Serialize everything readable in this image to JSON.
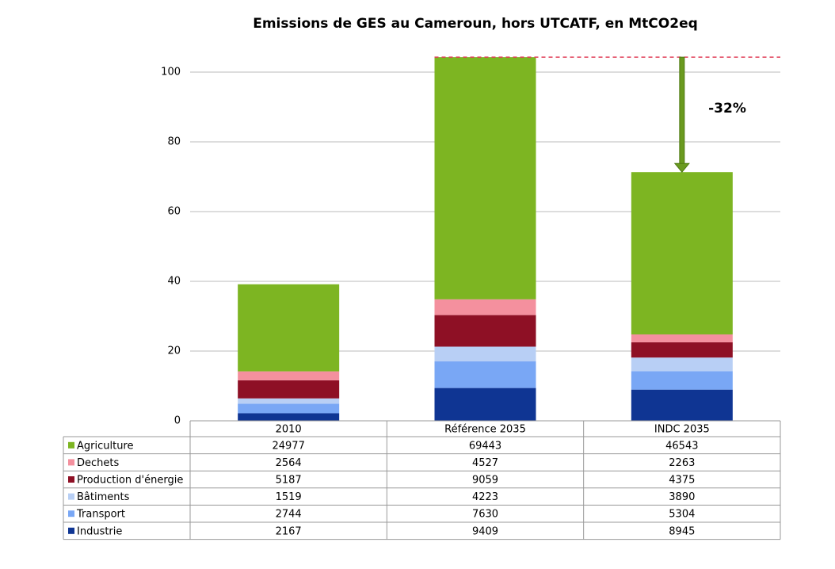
{
  "chart_data": {
    "type": "stacked_bar",
    "title": "Emissions de GES au Cameroun, hors UTCATF, en MtCO2eq",
    "categories": [
      "2010",
      "Référence 2035",
      "INDC 2035"
    ],
    "series": [
      {
        "name": "Agriculture",
        "color": "#7db522",
        "values": [
          24.977,
          69.443,
          46.543
        ],
        "value_labels": [
          "24977",
          "69443",
          "46543"
        ]
      },
      {
        "name": "Dechets",
        "color": "#f4909e",
        "values": [
          2.564,
          4.527,
          2.263
        ],
        "value_labels": [
          "2564",
          "4527",
          "2263"
        ]
      },
      {
        "name": "Production d'énergie",
        "color": "#8e1025",
        "values": [
          5.187,
          9.059,
          4.375
        ],
        "value_labels": [
          "5187",
          "9059",
          "4375"
        ]
      },
      {
        "name": "Bâtiments",
        "color": "#b8cff5",
        "values": [
          1.519,
          4.223,
          3.89
        ],
        "value_labels": [
          "1519",
          "4223",
          "3890"
        ]
      },
      {
        "name": "Transport",
        "color": "#79a7f5",
        "values": [
          2.744,
          7.63,
          5.304
        ],
        "value_labels": [
          "2744",
          "7630",
          "5304"
        ]
      },
      {
        "name": "Industrie",
        "color": "#0f3593",
        "values": [
          2.167,
          9.409,
          8.945
        ],
        "value_labels": [
          "2167",
          "9409",
          "8945"
        ]
      }
    ],
    "ylim": [
      0,
      110
    ],
    "yticks": [
      0,
      20,
      40,
      60,
      80,
      100
    ],
    "grid": true,
    "annotation": "-32%"
  }
}
